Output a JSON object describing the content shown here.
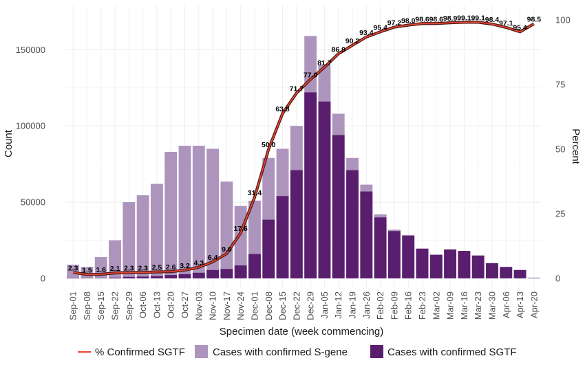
{
  "chart_data": {
    "type": "bar",
    "xlabel": "Specimen date (week commencing)",
    "ylabel_left": "Count",
    "ylabel_right": "Percent",
    "ylim_left": [
      0,
      170000
    ],
    "ylim_right": [
      0,
      100
    ],
    "yticks_left": [
      "0",
      "50000",
      "100000",
      "150000"
    ],
    "yticks_right": [
      "0",
      "25",
      "50",
      "75",
      "100"
    ],
    "categories": [
      "Sep-01",
      "Sep-08",
      "Sep-15",
      "Sep-22",
      "Sep-29",
      "Oct-06",
      "Oct-13",
      "Oct-20",
      "Oct-27",
      "Nov-03",
      "Nov-10",
      "Nov-17",
      "Nov-24",
      "Dec-01",
      "Dec-08",
      "Dec-15",
      "Dec-22",
      "Dec-29",
      "Jan-05",
      "Jan-12",
      "Jan-19",
      "Jan-26",
      "Feb-02",
      "Feb-09",
      "Feb-16",
      "Feb-23",
      "Mar-02",
      "Mar-09",
      "Mar-16",
      "Mar-23",
      "Mar-30",
      "Apr-06",
      "Apr-13",
      "Apr-20"
    ],
    "series": [
      {
        "name": "Cases with confirmed S-gene",
        "color": "#ad94bd",
        "values": [
          9000,
          7500,
          14000,
          25000,
          50000,
          54500,
          62000,
          83000,
          87000,
          87000,
          85000,
          63500,
          47500,
          51000,
          79000,
          85000,
          100000,
          159000,
          140000,
          108000,
          79000,
          61500,
          42000,
          32000,
          28500,
          19500,
          15500,
          19000,
          18000,
          15000,
          10000,
          7500,
          5500,
          500
        ]
      },
      {
        "name": "Cases with confirmed SGTF",
        "color": "#5a1e6e",
        "values": [
          200,
          150,
          200,
          500,
          1000,
          1200,
          1500,
          2200,
          2800,
          3700,
          5500,
          6200,
          8500,
          16000,
          38500,
          54000,
          71000,
          122000,
          116000,
          94000,
          71000,
          57000,
          40000,
          31000,
          28000,
          19500,
          15500,
          19000,
          18000,
          15000,
          10000,
          7500,
          5500,
          100
        ]
      },
      {
        "name": "% Confirmed SGTF",
        "color": "#e8452f",
        "values": [
          2.3,
          1.5,
          1.6,
          2.1,
          2.3,
          2.3,
          2.5,
          2.6,
          3.2,
          4.3,
          6.4,
          9.6,
          17.6,
          31.4,
          50.0,
          63.8,
          71.7,
          77.0,
          81.7,
          86.9,
          90.2,
          93.4,
          95.4,
          97.2,
          98.0,
          98.6,
          98.6,
          98.9,
          99.1,
          99.1,
          98.4,
          97.1,
          95.4,
          98.5
        ],
        "labels": [
          "2.3",
          "1.5",
          "1.6",
          "2.1",
          "2.3",
          "2.3",
          "2.5",
          "2.6",
          "3.2",
          "4.3",
          "6.4",
          "9.6",
          "17.6",
          "31.4",
          "50.0",
          "63.8",
          "71.7",
          "77.0",
          "81.7",
          "86.9",
          "90.2",
          "93.4",
          "95.4",
          "97.2",
          "98.0",
          "98.6",
          "98.6",
          "98.9",
          "99.1",
          "99.1",
          "98.4",
          "97.1",
          "95.4",
          "98.5"
        ]
      }
    ],
    "grid": true,
    "legend_position": "bottom"
  }
}
